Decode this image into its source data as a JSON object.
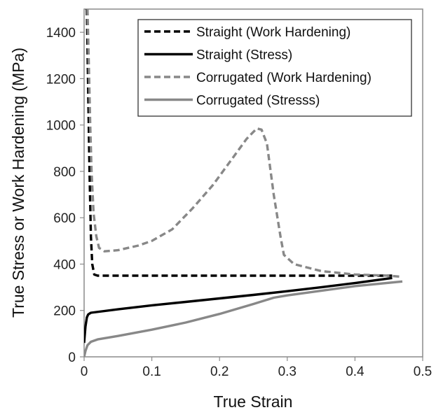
{
  "chart_data": {
    "type": "line",
    "title": "",
    "xlabel": "True Strain",
    "ylabel": "True Stress or Work Hardening (MPa)",
    "xlim": [
      0,
      0.5
    ],
    "ylim": [
      0,
      1500
    ],
    "xticks": [
      0,
      0.1,
      0.2,
      0.3,
      0.4,
      0.5
    ],
    "yticks": [
      0,
      200,
      400,
      600,
      800,
      1000,
      1200,
      1400
    ],
    "xtick_labels": [
      "0",
      "0.1",
      "0.2",
      "0.3",
      "0.4",
      "0.5"
    ],
    "ytick_labels": [
      "0",
      "200",
      "400",
      "600",
      "800",
      "1000",
      "1200",
      "1400"
    ],
    "grid": false,
    "legend_position": "top-right",
    "series": [
      {
        "name": "Straight (Work Hardening)",
        "color": "#000000",
        "dash": true,
        "x": [
          0.004,
          0.006,
          0.008,
          0.01,
          0.012,
          0.015,
          0.02,
          0.05,
          0.1,
          0.2,
          0.3,
          0.4,
          0.455
        ],
        "y": [
          1500,
          1150,
          800,
          520,
          400,
          355,
          350,
          350,
          350,
          350,
          350,
          350,
          350
        ]
      },
      {
        "name": "Straight (Stress)",
        "color": "#000000",
        "dash": false,
        "x": [
          0,
          0.002,
          0.004,
          0.006,
          0.01,
          0.05,
          0.1,
          0.15,
          0.2,
          0.25,
          0.3,
          0.35,
          0.4,
          0.455
        ],
        "y": [
          60,
          130,
          170,
          183,
          190,
          205,
          222,
          237,
          252,
          267,
          283,
          300,
          318,
          340
        ]
      },
      {
        "name": "Corrugated (Work Hardening)",
        "color": "#888888",
        "dash": true,
        "x": [
          0.005,
          0.007,
          0.009,
          0.011,
          0.014,
          0.018,
          0.022,
          0.03,
          0.05,
          0.08,
          0.1,
          0.13,
          0.16,
          0.19,
          0.22,
          0.24,
          0.255,
          0.262,
          0.27,
          0.28,
          0.29,
          0.295,
          0.31,
          0.35,
          0.4,
          0.45,
          0.47
        ],
        "y": [
          1500,
          1250,
          1000,
          800,
          620,
          520,
          470,
          455,
          460,
          480,
          500,
          550,
          640,
          740,
          860,
          940,
          985,
          980,
          920,
          700,
          520,
          440,
          400,
          370,
          355,
          350,
          345
        ]
      },
      {
        "name": "Corrugated (Stresss)",
        "color": "#888888",
        "dash": false,
        "x": [
          0,
          0.002,
          0.005,
          0.01,
          0.02,
          0.05,
          0.1,
          0.15,
          0.2,
          0.25,
          0.28,
          0.3,
          0.35,
          0.4,
          0.47
        ],
        "y": [
          0,
          25,
          50,
          65,
          75,
          90,
          117,
          148,
          185,
          228,
          255,
          265,
          285,
          305,
          325
        ]
      }
    ]
  }
}
